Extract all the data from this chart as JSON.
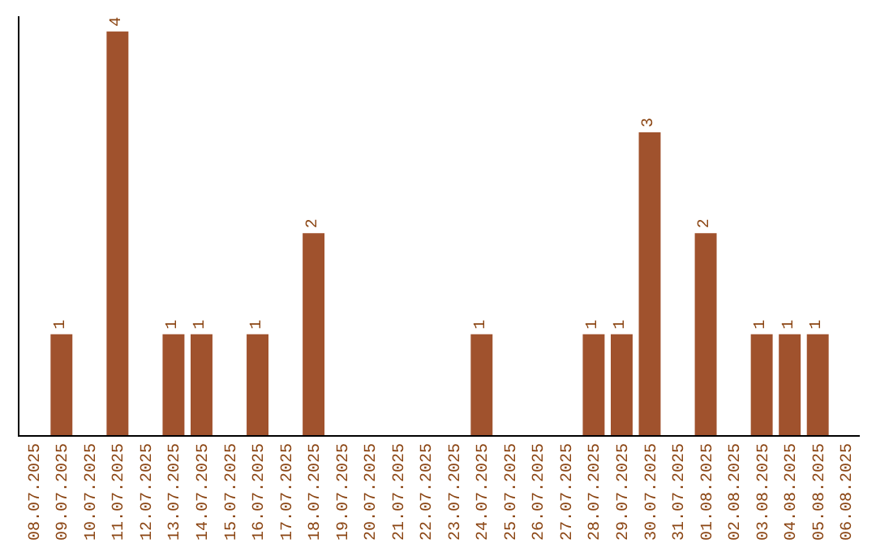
{
  "chart_data": {
    "type": "bar",
    "categories": [
      "08.07.2025",
      "09.07.2025",
      "10.07.2025",
      "11.07.2025",
      "12.07.2025",
      "13.07.2025",
      "14.07.2025",
      "15.07.2025",
      "16.07.2025",
      "17.07.2025",
      "18.07.2025",
      "19.07.2025",
      "20.07.2025",
      "21.07.2025",
      "22.07.2025",
      "23.07.2025",
      "24.07.2025",
      "25.07.2025",
      "26.07.2025",
      "27.07.2025",
      "28.07.2025",
      "29.07.2025",
      "30.07.2025",
      "31.07.2025",
      "01.08.2025",
      "02.08.2025",
      "03.08.2025",
      "04.08.2025",
      "05.08.2025",
      "06.08.2025"
    ],
    "values": [
      0,
      1,
      0,
      4,
      0,
      1,
      1,
      0,
      1,
      0,
      2,
      0,
      0,
      0,
      0,
      0,
      1,
      0,
      0,
      0,
      1,
      1,
      3,
      0,
      2,
      0,
      1,
      1,
      1,
      0
    ],
    "value_labels": [
      null,
      "1",
      null,
      "4",
      null,
      "1",
      "1",
      null,
      "1",
      null,
      "2",
      null,
      null,
      null,
      null,
      null,
      "1",
      null,
      null,
      null,
      "1",
      "1",
      "3",
      null,
      "2",
      null,
      "1",
      "1",
      "1",
      null
    ],
    "color": "#a0522d",
    "ylim": [
      0,
      4.15
    ],
    "tick_labels": "x",
    "grid": false
  }
}
